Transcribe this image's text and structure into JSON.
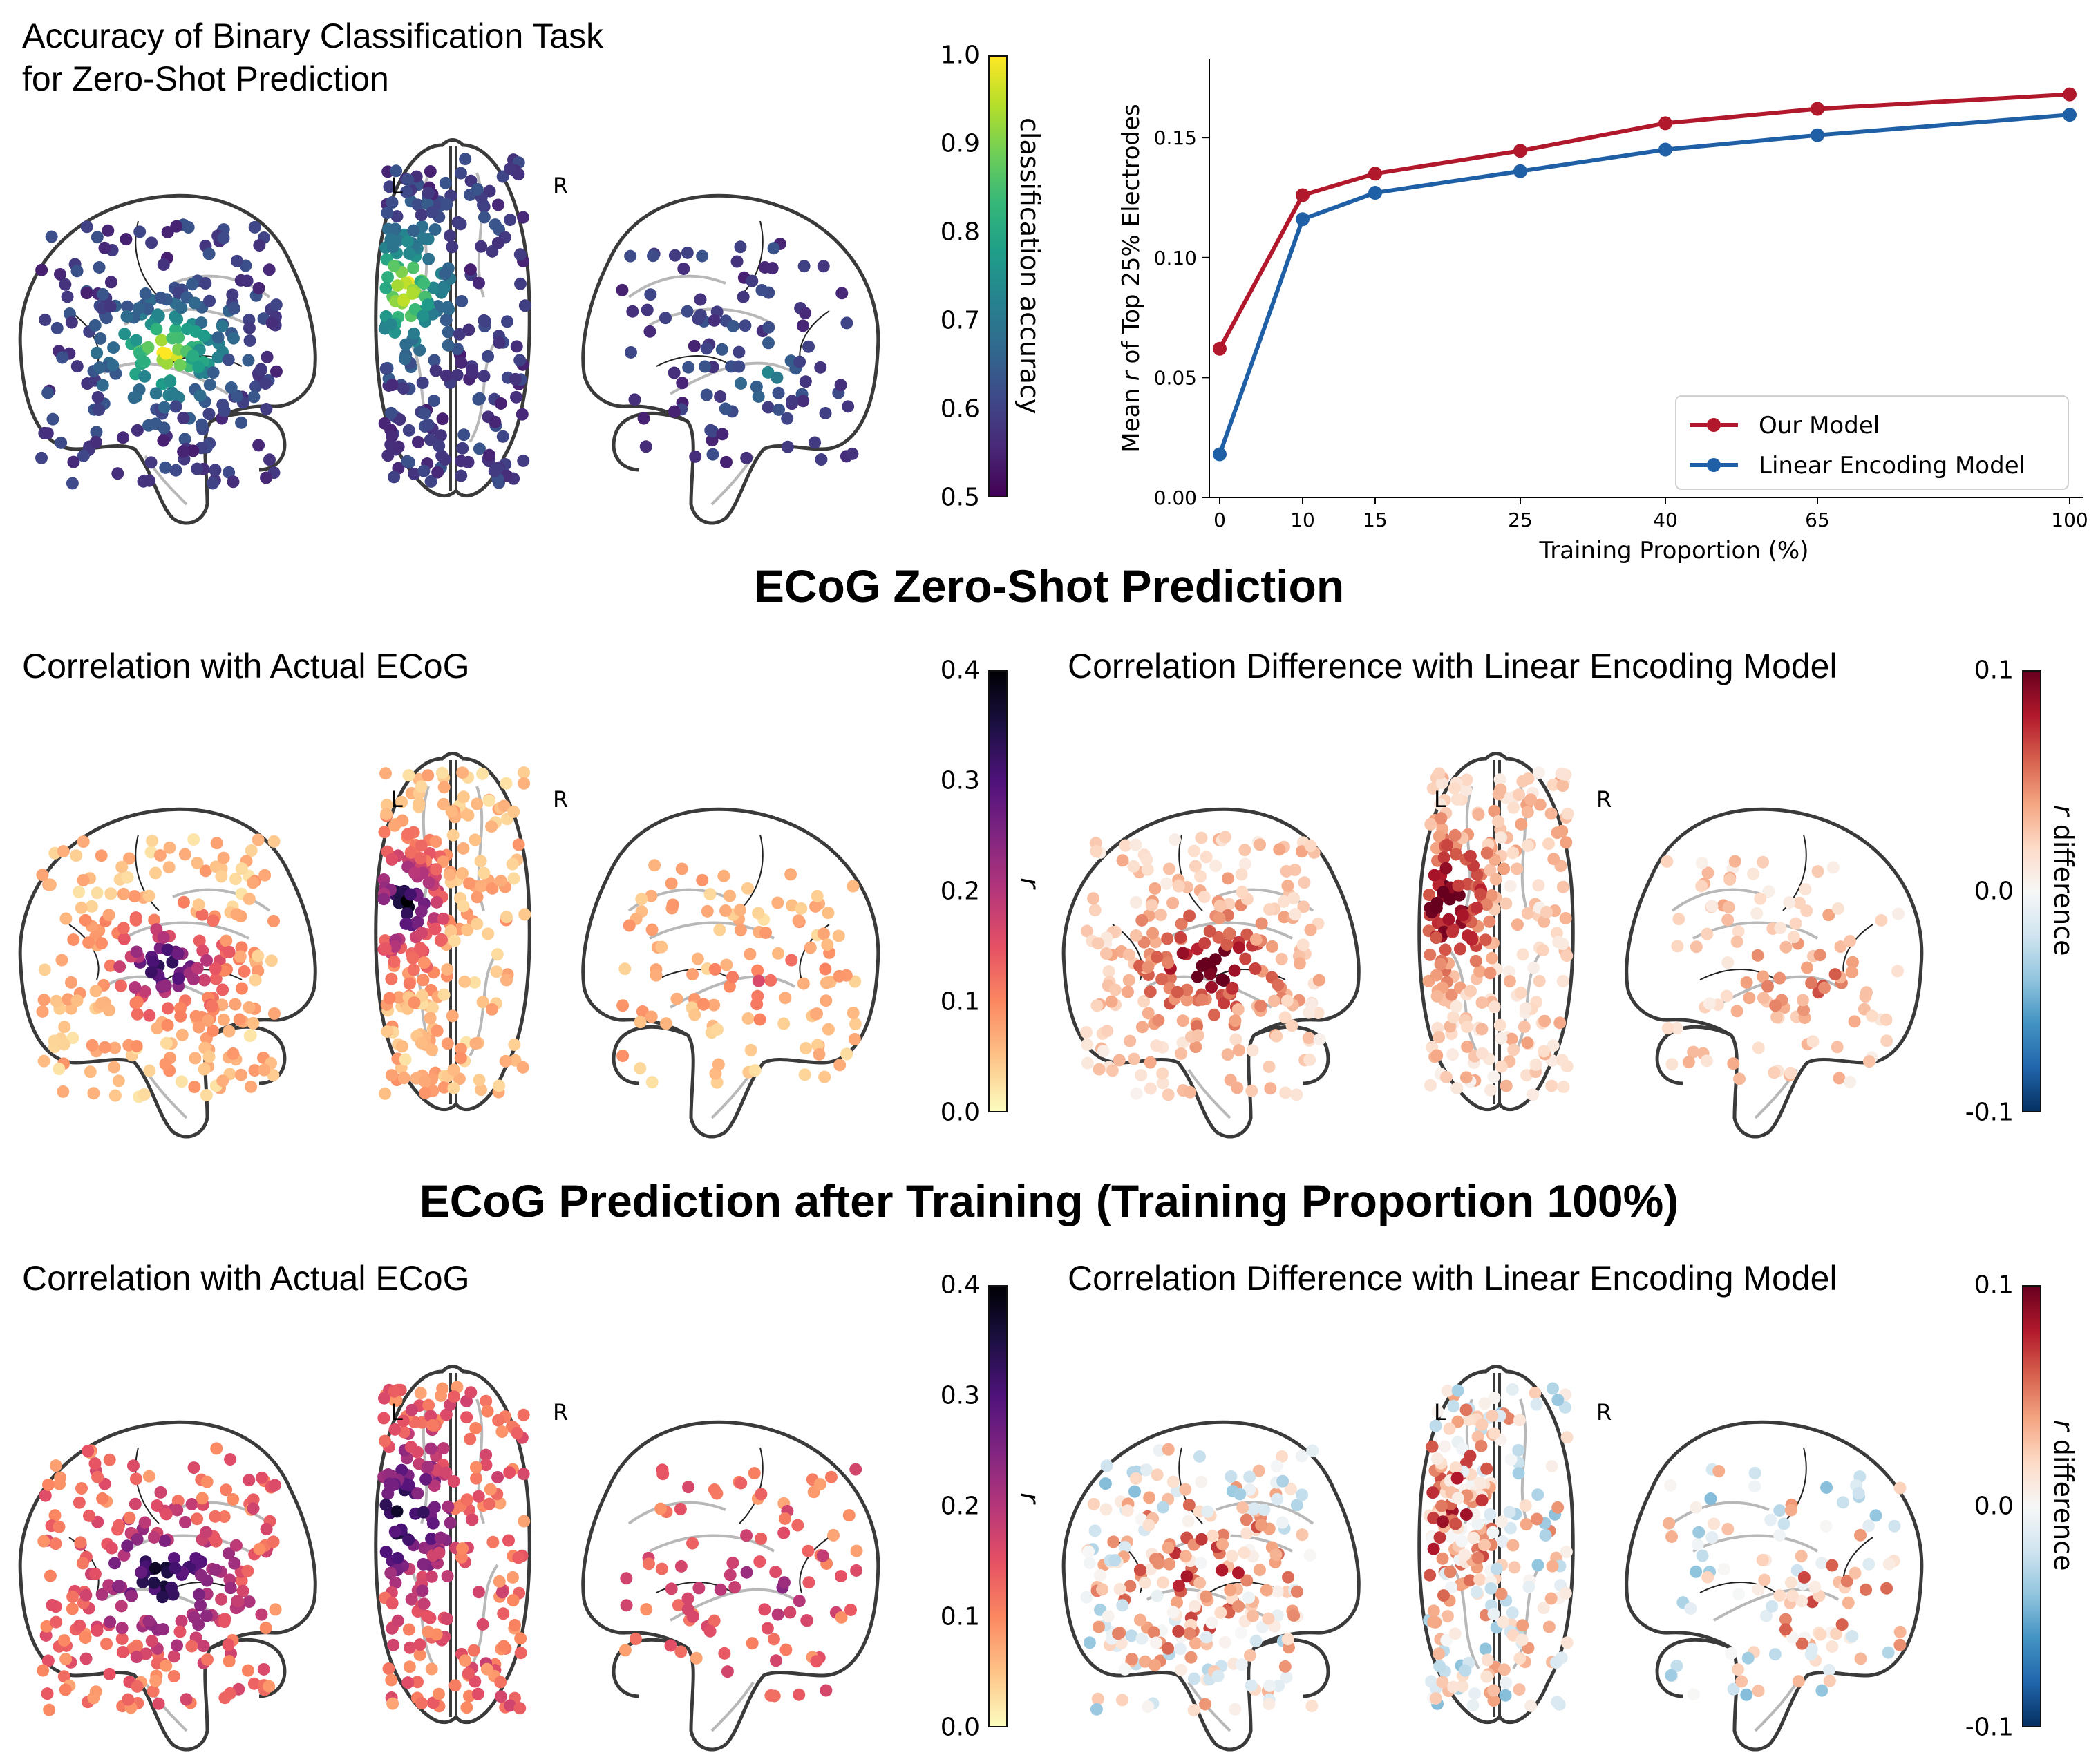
{
  "figure": {
    "top_panel_title_line1": "Accuracy of Binary Classification Task",
    "top_panel_title_line2": "for Zero-Shot Prediction",
    "section1_title": "ECoG Zero-Shot Prediction",
    "section2_title": "ECoG Prediction after Training (Training Proportion 100%)",
    "panel_corr_title": "Correlation with Actual ECoG",
    "panel_diff_title": "Correlation Difference with Linear Encoding Model",
    "hemisphere_left": "L",
    "hemisphere_right": "R"
  },
  "colorbars": {
    "accuracy": {
      "label": "classification accuracy",
      "colormap": "viridis",
      "range": [
        0.5,
        1.0
      ],
      "ticks": [
        "1.0",
        "0.9",
        "0.8",
        "0.7",
        "0.6",
        "0.5"
      ],
      "stops": [
        "#fde725",
        "#b5de2b",
        "#6ece58",
        "#35b779",
        "#1f9e89",
        "#26828e",
        "#31688e",
        "#3e4989",
        "#482878",
        "#440154"
      ]
    },
    "correlation": {
      "label": "r",
      "colormap": "magma_r",
      "range": [
        0.0,
        0.4
      ],
      "ticks": [
        "0.4",
        "0.3",
        "0.2",
        "0.1",
        "0.0"
      ],
      "stops": [
        "#000004",
        "#1c1044",
        "#4f127b",
        "#812581",
        "#b5367a",
        "#e55064",
        "#fb8761",
        "#fec287",
        "#fcfdbf"
      ]
    },
    "difference": {
      "label": "r difference",
      "colormap": "RdBu_r",
      "range": [
        -0.1,
        0.1
      ],
      "ticks": [
        "0.1",
        "0.0",
        "-0.1"
      ],
      "stops": [
        "#67001f",
        "#b2182b",
        "#d6604d",
        "#f4a582",
        "#fddbc7",
        "#f7f7f7",
        "#d1e5f0",
        "#92c5de",
        "#4393c3",
        "#2166ac",
        "#053061"
      ]
    }
  },
  "chart_data": [
    {
      "type": "line",
      "title": "",
      "xlabel": "Training Proportion (%)",
      "ylabel": "Mean r of Top 25% Electrodes",
      "categories": [
        "0",
        "10",
        "15",
        "25",
        "40",
        "65",
        "100"
      ],
      "ylim": [
        0.0,
        0.18
      ],
      "yticks": [
        "0.00",
        "0.05",
        "0.10",
        "0.15"
      ],
      "ytick_values": [
        0.0,
        0.05,
        0.1,
        0.15
      ],
      "grid": false,
      "legend_position": "lower-right",
      "series": [
        {
          "name": "Our Model",
          "color": "#b2182b",
          "values": [
            0.062,
            0.126,
            0.135,
            0.1445,
            0.156,
            0.162,
            0.168
          ]
        },
        {
          "name": "Linear Encoding Model",
          "color": "#1f5fa6",
          "values": [
            0.018,
            0.116,
            0.127,
            0.136,
            0.145,
            0.151,
            0.1595
          ]
        }
      ]
    },
    {
      "type": "scatter",
      "title": "Accuracy of Binary Classification Task for Zero-Shot Prediction",
      "description": "Glass-brain electrode maps (left lateral, axial, right lateral) colored by classification accuracy",
      "colorbar": "accuracy",
      "value_range": [
        0.5,
        1.0
      ],
      "seed": 11,
      "base": 0.08,
      "hot": 0.95,
      "spread": "low"
    },
    {
      "type": "scatter",
      "title": "ECoG Zero-Shot Prediction — Correlation with Actual ECoG",
      "colorbar": "correlation",
      "value_range": [
        0.0,
        0.4
      ],
      "seed": 23,
      "base": 0.05,
      "hot": 0.9,
      "spread": "low"
    },
    {
      "type": "scatter",
      "title": "ECoG Zero-Shot Prediction — Correlation Difference with Linear Encoding Model",
      "colorbar": "difference",
      "value_range": [
        -0.1,
        0.1
      ],
      "seed": 37,
      "base": 0.58,
      "hot": 1.0,
      "spread": "positive"
    },
    {
      "type": "scatter",
      "title": "ECoG Prediction after Training (Training Proportion 100%) — Correlation with Actual ECoG",
      "colorbar": "correlation",
      "value_range": [
        0.0,
        0.4
      ],
      "seed": 41,
      "base": 0.18,
      "hot": 1.0,
      "spread": "mid"
    },
    {
      "type": "scatter",
      "title": "ECoG Prediction after Training (Training Proportion 100%) — Correlation Difference with Linear Encoding Model",
      "colorbar": "difference",
      "value_range": [
        -0.1,
        0.1
      ],
      "seed": 53,
      "base": 0.5,
      "hot": 0.9,
      "spread": "mixed"
    }
  ]
}
